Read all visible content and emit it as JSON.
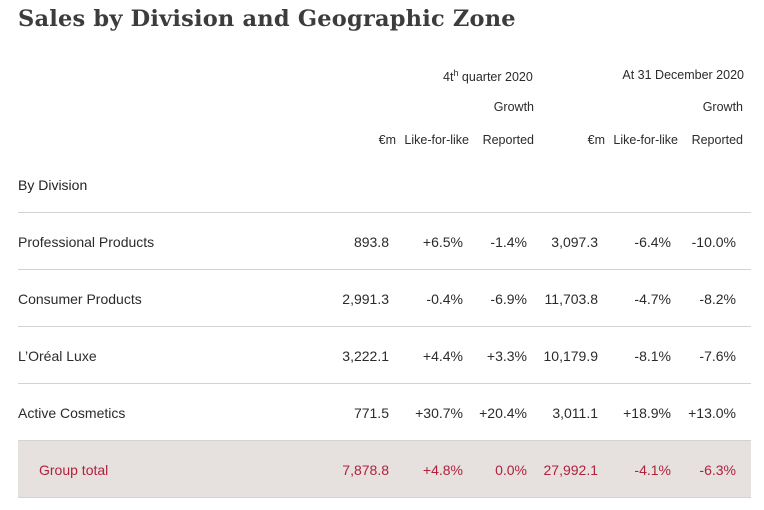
{
  "title": "Sales by Division and Geographic Zone",
  "header": {
    "period1": {
      "prefix": "4t",
      "sup": "h",
      "suffix": " quarter 2020"
    },
    "period2": "At 31 December 2020",
    "growth": "Growth",
    "col_eur": "€m",
    "col_lfl": "Like-for-like",
    "col_reported": "Reported"
  },
  "section_label": "By Division",
  "rows": [
    {
      "label": "Professional Products",
      "q_eur": "893.8",
      "q_lfl": "+6.5%",
      "q_rep": "-1.4%",
      "y_eur": "3,097.3",
      "y_lfl": "-6.4%",
      "y_rep": "-10.0%"
    },
    {
      "label": "Consumer Products",
      "q_eur": "2,991.3",
      "q_lfl": "-0.4%",
      "q_rep": "-6.9%",
      "y_eur": "11,703.8",
      "y_lfl": "-4.7%",
      "y_rep": "-8.2%"
    },
    {
      "label": "L’Oréal Luxe",
      "q_eur": "3,222.1",
      "q_lfl": "+4.4%",
      "q_rep": "+3.3%",
      "y_eur": "10,179.9",
      "y_lfl": "-8.1%",
      "y_rep": "-7.6%"
    },
    {
      "label": "Active Cosmetics",
      "q_eur": "771.5",
      "q_lfl": "+30.7%",
      "q_rep": "+20.4%",
      "y_eur": "3,011.1",
      "y_lfl": "+18.9%",
      "y_rep": "+13.0%"
    }
  ],
  "total": {
    "label": "Group total",
    "q_eur": "7,878.8",
    "q_lfl": "+4.8%",
    "q_rep": "0.0%",
    "y_eur": "27,992.1",
    "y_lfl": "-4.1%",
    "y_rep": "-6.3%"
  },
  "colors": {
    "total_text": "#b0213c",
    "total_bg": "#e6e1de",
    "rule": "#d3d3d3"
  }
}
